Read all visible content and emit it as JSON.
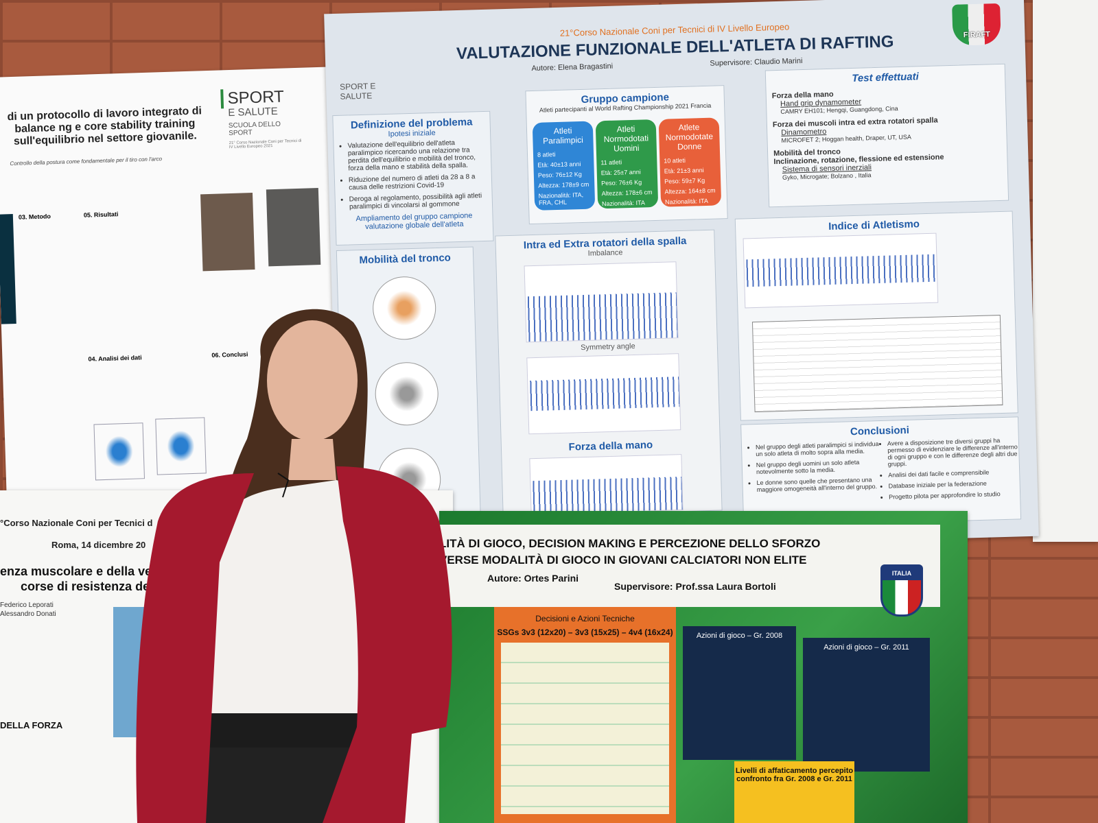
{
  "left_poster": {
    "logo_top": "SPORT",
    "logo_bottom": "E SALUTE",
    "school": "SCUOLA DELLO SPORT",
    "course": "21° Corso Nazionale Coni per Tecnici di IV Livello Europeo 2021",
    "title": "di un protocollo di lavoro integrato di balance ng e core stability training sull'equilibrio nel settore giovanile.",
    "subtitle": "Controllo della postura come fondamentale per il tiro con l'arco",
    "sections": [
      "03. Metodo",
      "05. Risultati",
      "04. Analisi dei dati",
      "06. Conclusi"
    ]
  },
  "main_poster": {
    "header": "21°Corso Nazionale Coni per Tecnici di IV Livello Europeo",
    "title": "VALUTAZIONE FUNZIONALE DELL'ATLETA DI RAFTING",
    "author": "Autore: Elena Bragastini",
    "supervisor": "Supervisore: Claudio Marini",
    "logo": "FIRAFT",
    "school_logo": "SPORT E SALUTE",
    "problem": {
      "title": "Definizione del problema",
      "subtitle": "Ipotesi iniziale",
      "bullets": [
        "Valutazione dell'equilibrio dell'atleta paralimpico ricercando una relazione tra perdita dell'equilibrio e mobilità del tronco, forza della mano e stabilità della spalla.",
        "Riduzione del numero di atleti da 28 a 8 a causa delle restrizioni Covid-19",
        "Deroga al regolamento, possibilità agli atleti paralimpici di vincolarsi al gommone"
      ],
      "footer": "Ampliamento del gruppo campione valutazione globale dell'atleta"
    },
    "sample": {
      "title": "Gruppo campione",
      "subtitle": "Atleti partecipanti al World Rafting Championship 2021 Francia",
      "groups": [
        {
          "name": "Atleti Paralimpici",
          "lines": [
            "8 atleti",
            "Età: 40±13 anni",
            "Peso: 76±12 Kg",
            "Altezza: 178±9 cm",
            "Nazionalità: ITA, FRA, CHL"
          ]
        },
        {
          "name": "Atleti Normodotati Uomini",
          "lines": [
            "11 atleti",
            "Età: 25±7 anni",
            "Peso: 76±6 Kg",
            "Altezza: 178±6 cm",
            "Nazionalità: ITA"
          ]
        },
        {
          "name": "Atlete Normodotate Donne",
          "lines": [
            "10 atleti",
            "Età: 21±3 anni",
            "Peso: 59±7 Kg",
            "Altezza: 164±8 cm",
            "Nazionalità: ITA"
          ]
        }
      ]
    },
    "tests": {
      "title": "Test effettuati",
      "lines": [
        "Forza della mano",
        "Hand grip dynamometer",
        "CAMRY EH101; Hengqi, Guangdong, Cina",
        "Forza dei muscoli intra ed extra rotatori spalla",
        "Dinamometro",
        "MICROFET 2; Hoggan health, Draper, UT, USA",
        "Mobilità del tronco",
        "Inclinazione, rotazione, flessione ed estensione",
        "Sistema di sensori inerziali",
        "Gyko, Microgate; Bolzano , Italia"
      ]
    },
    "trunk": "Mobilità del tronco",
    "shoulder": {
      "title": "Intra ed Extra rotatori della spalla",
      "imbalance": "Imbalance",
      "symmetry": "Symmetry angle"
    },
    "hand": "Forza della mano",
    "athletic": "Indice di Atletismo",
    "conclusions": {
      "title": "Conclusioni",
      "left": [
        "Nel gruppo degli atleti paralimpici si individua un solo atleta di molto sopra alla media.",
        "Nel gruppo degli uomini un solo atleta notevolmente sotto la media.",
        "Le donne sono quelle che presentano una maggiore omogeneità all'interno del gruppo."
      ],
      "right": [
        "Avere a disposizione tre diversi gruppi ha permesso di evidenziare le differenze all'interno di ogni gruppo e con le differenze degli altri due gruppi.",
        "Analisi dei dati facile e comprensibile",
        "Database iniziale per la federazione",
        "Progetto pilota per approfondire lo studio"
      ]
    }
  },
  "bottom_left_poster": {
    "course": "°Corso Nazionale Coni per Tecnici d",
    "date": "Roma, 14 dicembre 20",
    "title_1": "enza muscolare e della ve",
    "title_2": "corse di resistenza de",
    "authors": [
      "Federico Leporati",
      "Alessandro Donati"
    ],
    "section": "DELLA FORZA"
  },
  "bottom_poster": {
    "title_1": "LITÀ DI GIOCO, DECISION MAKING E PERCEZIONE DELLO SFORZO",
    "title_2": "VERSE MODALITÀ DI GIOCO IN GIOVANI CALCIATORI NON ELITE",
    "author": "Autore: Ortes Parini",
    "supervisor": "Supervisore: Prof.ssa Laura Bortoli",
    "badge": "ITALIA",
    "table_title": "Decisioni e Azioni Tecniche",
    "table_subtitle": "SSGs 3v3 (12x20) – 3v3 (15x25) – 4v4 (16x24)",
    "radar_1": "Azioni di gioco – Gr. 2008",
    "radar_2": "Azioni di gioco – Gr. 2011",
    "fatigue": "Livelli di affaticamento percepito confronto fra Gr. 2008 e Gr. 2011"
  }
}
